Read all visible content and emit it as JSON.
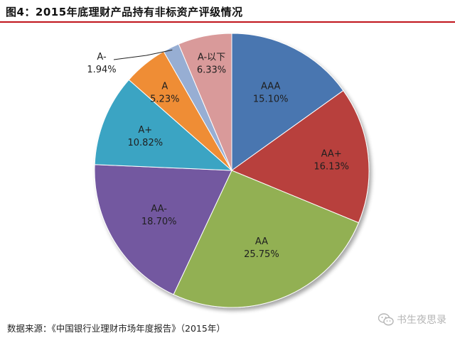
{
  "title": "图4：2015年底理财产品持有非标资产评级情况",
  "source": "数据来源：《中国银行业理财市场年度报告》（2015年）",
  "watermark": "书生夜思录",
  "chart_data": {
    "type": "pie",
    "title": "图4：2015年底理财产品持有非标资产评级情况",
    "slices": [
      {
        "label": "AAA",
        "value": 15.1,
        "pct": "15.10%",
        "color": "#4a76b0"
      },
      {
        "label": "AA+",
        "value": 16.13,
        "pct": "16.13%",
        "color": "#b8413e"
      },
      {
        "label": "AA",
        "value": 25.75,
        "pct": "25.75%",
        "color": "#92b053"
      },
      {
        "label": "AA-",
        "value": 18.7,
        "pct": "18.70%",
        "color": "#7359a0"
      },
      {
        "label": "A+",
        "value": 10.82,
        "pct": "10.82%",
        "color": "#3ba4c3"
      },
      {
        "label": "A",
        "value": 5.23,
        "pct": "5.23%",
        "color": "#ef8d34"
      },
      {
        "label": "A-",
        "value": 1.94,
        "pct": "1.94%",
        "color": "#97aed3"
      },
      {
        "label": "A-以下",
        "value": 6.33,
        "pct": "6.33%",
        "color": "#d99a9a"
      }
    ]
  }
}
